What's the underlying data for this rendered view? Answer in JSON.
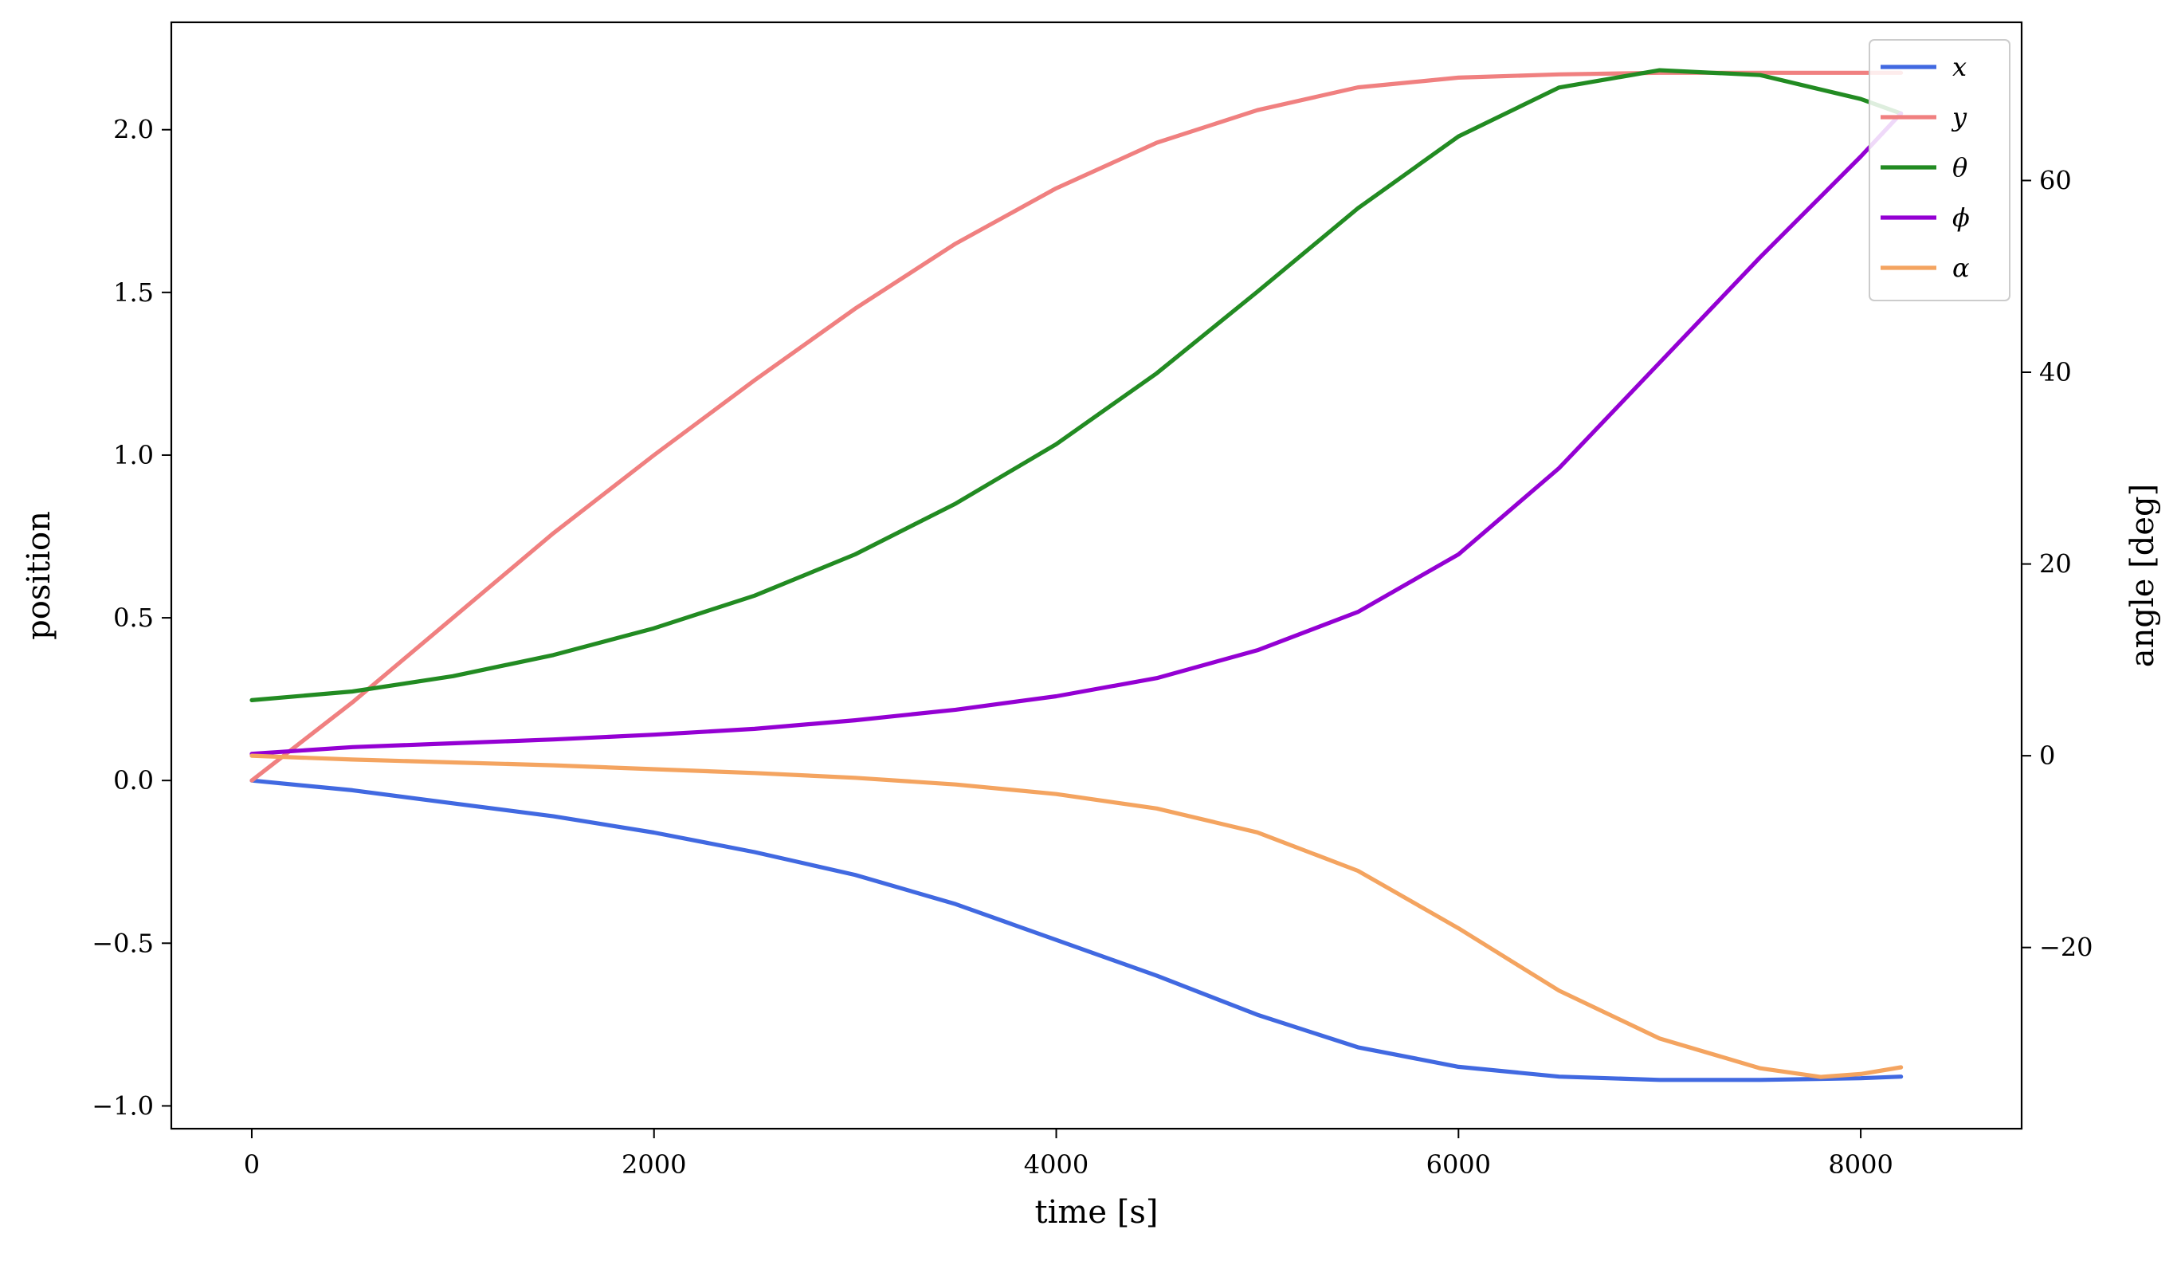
{
  "chart_data": {
    "type": "line",
    "xlabel": "time [s]",
    "ylabel": "position",
    "y2label": "angle [deg]",
    "xlim": [
      -400,
      8800
    ],
    "ylim": [
      -1.07,
      2.33
    ],
    "y2lim": [
      -38.9,
      76.5
    ],
    "x_ticks": [
      0,
      2000,
      4000,
      6000,
      8000
    ],
    "x_tick_labels": [
      "0",
      "2000",
      "4000",
      "6000",
      "8000"
    ],
    "y_ticks": [
      -1.0,
      -0.5,
      0.0,
      0.5,
      1.0,
      1.5,
      2.0
    ],
    "y_tick_labels": [
      "−1.0",
      "−0.5",
      "0.0",
      "0.5",
      "1.0",
      "1.5",
      "2.0"
    ],
    "y2_ticks": [
      -20,
      0,
      20,
      40,
      60
    ],
    "y2_tick_labels": [
      "−20",
      "0",
      "20",
      "40",
      "60"
    ],
    "grid": false,
    "legend_position": "top-right",
    "series": [
      {
        "name": "x",
        "axis": "left",
        "color": "#4169e1",
        "x": [
          0,
          500,
          1000,
          1500,
          2000,
          2500,
          3000,
          3500,
          4000,
          4500,
          5000,
          5500,
          6000,
          6500,
          7000,
          7500,
          8000,
          8200
        ],
        "y": [
          0.0,
          -0.03,
          -0.07,
          -0.11,
          -0.16,
          -0.22,
          -0.29,
          -0.38,
          -0.49,
          -0.6,
          -0.72,
          -0.82,
          -0.88,
          -0.91,
          -0.92,
          -0.92,
          -0.915,
          -0.91
        ]
      },
      {
        "name": "y",
        "axis": "left",
        "color": "#f08080",
        "x": [
          0,
          500,
          1000,
          1500,
          2000,
          2500,
          3000,
          3500,
          4000,
          4500,
          5000,
          5500,
          6000,
          6500,
          7000,
          7500,
          8000,
          8200
        ],
        "y": [
          0.0,
          0.24,
          0.5,
          0.76,
          1.0,
          1.23,
          1.45,
          1.65,
          1.82,
          1.96,
          2.06,
          2.13,
          2.16,
          2.17,
          2.175,
          2.175,
          2.175,
          2.175
        ]
      },
      {
        "name": "θ",
        "axis": "right",
        "color": "#228b22",
        "x": [
          0,
          500,
          1000,
          1500,
          2000,
          2500,
          3000,
          3500,
          4000,
          4500,
          5000,
          5500,
          6000,
          6500,
          7000,
          7500,
          8000,
          8200
        ],
        "y": [
          5.8,
          6.7,
          8.3,
          10.5,
          13.3,
          16.7,
          21.0,
          26.3,
          32.5,
          39.9,
          48.4,
          57.1,
          64.6,
          69.7,
          71.5,
          71.0,
          68.5,
          67.0
        ]
      },
      {
        "name": "ϕ",
        "axis": "right",
        "color": "#9400d3",
        "x": [
          0,
          500,
          1000,
          1500,
          2000,
          2500,
          3000,
          3500,
          4000,
          4500,
          5000,
          5500,
          6000,
          6500,
          7000,
          7500,
          8000,
          8200
        ],
        "y": [
          0.2,
          0.9,
          1.3,
          1.7,
          2.2,
          2.8,
          3.7,
          4.8,
          6.2,
          8.1,
          11.0,
          15.0,
          21.0,
          30.0,
          41.0,
          52.0,
          62.5,
          67.0
        ]
      },
      {
        "name": "α",
        "axis": "right",
        "color": "#f4a460",
        "x": [
          0,
          500,
          1000,
          1500,
          2000,
          2500,
          3000,
          3500,
          4000,
          4500,
          5000,
          5500,
          6000,
          6500,
          7000,
          7500,
          7800,
          8000,
          8200
        ],
        "y": [
          0.0,
          -0.4,
          -0.7,
          -1.0,
          -1.4,
          -1.8,
          -2.3,
          -3.0,
          -4.0,
          -5.5,
          -8.0,
          -12.0,
          -18.0,
          -24.5,
          -29.5,
          -32.6,
          -33.5,
          -33.2,
          -32.5
        ]
      }
    ]
  }
}
